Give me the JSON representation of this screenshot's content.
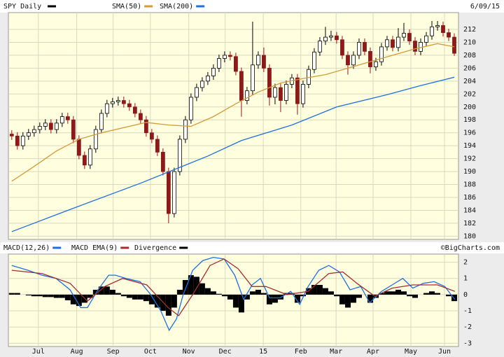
{
  "chart_data": [
    {
      "type": "candlestick",
      "title": "SPY Daily",
      "date_label": "6/09/15",
      "color": "#000000",
      "down_color": "#8b1a1a",
      "open": [
        195.8,
        195.5,
        194,
        195.5,
        196,
        196.5,
        197,
        197.5,
        196.5,
        197.5,
        198.5,
        198,
        195,
        192.5,
        191,
        193.5,
        196.5,
        199,
        200.5,
        200.8,
        201,
        200.5,
        200,
        199,
        198,
        196,
        195,
        193,
        190,
        183.5,
        190,
        195,
        198,
        201.5,
        203,
        204,
        204.8,
        206,
        207.5,
        208,
        207.8,
        205.5,
        201,
        202.5,
        206.5,
        208,
        206,
        201.5,
        203,
        201,
        203.5,
        204.5,
        200.5,
        203.5,
        205.8,
        208.5,
        210.2,
        210.8,
        211,
        210.4,
        208,
        206.5,
        208,
        210,
        208.6,
        206.2,
        207,
        209.3,
        210.4,
        209.2,
        210.8,
        211.4,
        210.2,
        208.6,
        210,
        211,
        212.4,
        212.6,
        211.5,
        210.8
      ],
      "high": [
        196.4,
        196.1,
        196.1,
        196.6,
        197.1,
        197.6,
        198.1,
        198.1,
        198.1,
        199.1,
        199.1,
        198.6,
        195.6,
        193.1,
        194.1,
        197.1,
        199.6,
        201.1,
        201.4,
        201.6,
        201.6,
        201.1,
        200.6,
        199.6,
        198.6,
        196.6,
        195.6,
        193.6,
        190.6,
        190.6,
        195.6,
        198.6,
        202.1,
        203.6,
        204.6,
        205.4,
        206.6,
        208.1,
        208.6,
        208.6,
        208.4,
        206.1,
        203.1,
        213.2,
        208.6,
        209.2,
        206.6,
        203.6,
        203.6,
        204.1,
        205.1,
        205.1,
        204.1,
        206.4,
        209.1,
        210.8,
        212.4,
        211.8,
        211.6,
        211,
        208.6,
        208.6,
        210.6,
        210.6,
        209.2,
        207.6,
        209.9,
        211,
        211,
        212.2,
        213,
        212,
        210.8,
        210.6,
        211.6,
        213.3,
        213.3,
        213.2,
        212.1,
        211.4
      ],
      "low": [
        194.9,
        193.4,
        193.4,
        194.9,
        195.4,
        195.9,
        196.4,
        195.9,
        195.9,
        196.9,
        197.4,
        194.4,
        191.9,
        190.4,
        190.4,
        192.9,
        195.9,
        198.4,
        199.9,
        200.2,
        199.9,
        199.4,
        198.4,
        197.4,
        195.4,
        194.4,
        192.4,
        189.4,
        182,
        182.9,
        189.4,
        194.4,
        197.4,
        200.9,
        202.4,
        203.4,
        204.2,
        205.4,
        206.9,
        207.2,
        204.9,
        198.5,
        200.4,
        201.9,
        205.9,
        205.4,
        200.2,
        200.4,
        199.2,
        200.4,
        202.9,
        198.8,
        199.9,
        202.9,
        205.2,
        207.9,
        209.6,
        210.2,
        209.8,
        207.4,
        205,
        205.9,
        207.4,
        208,
        205.2,
        205.6,
        206.4,
        208.7,
        208.6,
        208.6,
        210.2,
        209.6,
        208,
        208,
        209.4,
        210.4,
        211.8,
        210.9,
        210.2,
        207.9
      ],
      "close": [
        195.5,
        194,
        195.5,
        196,
        196.5,
        197,
        197.5,
        196.5,
        197.5,
        198.5,
        198,
        195,
        192.5,
        191,
        193.5,
        196.5,
        199,
        200.5,
        200.8,
        201,
        200.5,
        200,
        199,
        198,
        196,
        195,
        193,
        190,
        183.5,
        190,
        195,
        198,
        201.5,
        203,
        204,
        204.8,
        206,
        207.5,
        208,
        207.8,
        205.5,
        201,
        202.5,
        206.5,
        208,
        206,
        201.5,
        203,
        201,
        203.5,
        204.5,
        200.5,
        203.5,
        205.8,
        208.5,
        210.2,
        210.8,
        211,
        210.4,
        208,
        206.5,
        208,
        210,
        208.6,
        206.2,
        207,
        209.3,
        210.4,
        209.2,
        210.8,
        211.4,
        210.2,
        208.6,
        210,
        211,
        212.4,
        212.6,
        211.5,
        210.8,
        208.3
      ],
      "series": [
        {
          "name": "SMA(50)",
          "color": "#d49a3a",
          "x": [
            0,
            4,
            8,
            12,
            16,
            20,
            24,
            28,
            32,
            36,
            40,
            44,
            48,
            52,
            56,
            60,
            64,
            68,
            72,
            76,
            79
          ],
          "values": [
            188.5,
            190.8,
            193.2,
            195,
            196,
            196.8,
            197.6,
            197.2,
            197,
            198.5,
            200.5,
            202.3,
            203.7,
            204.4,
            205,
            206,
            207,
            208,
            209,
            209.8,
            209.3
          ]
        },
        {
          "name": "SMA(200)",
          "color": "#1f6fe0",
          "x": [
            0,
            10,
            23,
            35,
            41,
            50,
            58,
            67,
            73,
            79
          ],
          "values": [
            180.7,
            184,
            188.2,
            192.4,
            194.8,
            197.2,
            200,
            201.9,
            203.3,
            204.6
          ]
        }
      ],
      "ylim": [
        179.5,
        214.6
      ],
      "yticks": [
        180,
        182,
        184,
        186,
        188,
        190,
        192,
        194,
        196,
        198,
        200,
        202,
        204,
        206,
        208,
        210,
        212
      ],
      "grid": true
    },
    {
      "type": "macd",
      "source": "©BigCharts.com",
      "series": [
        {
          "name": "MACD(12,26)",
          "color": "#1f6fe0",
          "x": [
            0,
            2.9,
            5.4,
            7.9,
            10.4,
            12.3,
            13.5,
            15.4,
            17.3,
            18.5,
            20.4,
            22.9,
            24.8,
            26.6,
            28.1,
            29.4,
            30.6,
            32.3,
            34.1,
            36,
            37.9,
            39.8,
            41.4,
            42.9,
            44.4,
            46,
            47.9,
            49.8,
            51.4,
            52.9,
            54.8,
            56.6,
            58.5,
            60.4,
            62.3,
            63.9,
            66,
            67.9,
            69.8,
            71.6,
            73.5,
            75.4,
            77.3,
            79.1
          ],
          "values": [
            1.8,
            1.5,
            1.2,
            1,
            0.3,
            -0.8,
            -0.8,
            0.3,
            1.2,
            1.2,
            1,
            0.8,
            0,
            -1,
            -2.2,
            -1.5,
            0,
            1.5,
            2.1,
            2.3,
            2.2,
            1.2,
            -0.3,
            0.6,
            1,
            -0.2,
            -0.2,
            0.2,
            -0.6,
            0.5,
            1.5,
            1.8,
            1.4,
            0.3,
            0.5,
            -0.5,
            0.2,
            0.6,
            1,
            0.4,
            0.7,
            0.8,
            0.5,
            -0.3
          ]
        },
        {
          "name": "MACD EMA(9)",
          "color": "#a03030",
          "x": [
            0,
            5.4,
            10.4,
            13.5,
            16.6,
            19.8,
            24.1,
            27.9,
            29.8,
            32.3,
            35.4,
            37.9,
            40.4,
            42.9,
            45.4,
            49.1,
            52.9,
            56.6,
            59.1,
            61.6,
            64.8,
            67.9,
            71.6,
            76,
            79.1
          ],
          "values": [
            1.5,
            1.3,
            0.7,
            -0.4,
            0.5,
            1,
            0.6,
            -0.8,
            -1.3,
            0,
            1.8,
            2.2,
            1.6,
            0.5,
            0.5,
            0,
            0.2,
            1.3,
            1.4,
            0.7,
            -0.1,
            0.4,
            0.6,
            0.6,
            0.2
          ]
        },
        {
          "name": "Divergence",
          "color": "#000000",
          "values": [
            0.1,
            0.1,
            0,
            -0.05,
            -0.1,
            -0.1,
            -0.15,
            -0.15,
            -0.2,
            -0.2,
            -0.35,
            -0.6,
            -0.7,
            -0.5,
            -0.2,
            0.3,
            0.5,
            0.5,
            0.3,
            0.1,
            -0.1,
            -0.2,
            -0.3,
            -0.3,
            -0.4,
            -0.6,
            -0.8,
            -1,
            -1.3,
            -0.8,
            0.3,
            0.9,
            1.2,
            1.1,
            0.7,
            0.4,
            0.2,
            0.05,
            -0.1,
            -0.3,
            -0.8,
            -1.1,
            -0.3,
            0.2,
            0.3,
            0.1,
            -0.6,
            -0.5,
            -0.3,
            0.1,
            0.1,
            -0.5,
            -0.1,
            0.4,
            0.6,
            0.6,
            0.4,
            0.2,
            -0.1,
            -0.6,
            -0.8,
            -0.5,
            -0.2,
            0,
            -0.5,
            -0.2,
            0.1,
            0.2,
            0.2,
            0.3,
            0.2,
            -0.1,
            -0.2,
            0,
            0.1,
            0.2,
            0.1,
            0,
            -0.1,
            -0.4
          ]
        }
      ],
      "xlim": [
        -0.6,
        79.75
      ],
      "xticks": [
        {
          "value": 4.75,
          "label": "Jul"
        },
        {
          "value": 11.6,
          "label": "Aug"
        },
        {
          "value": 18.1,
          "label": "Sep"
        },
        {
          "value": 24.75,
          "label": "Oct"
        },
        {
          "value": 31.6,
          "label": "Nov"
        },
        {
          "value": 38.1,
          "label": "Dec"
        },
        {
          "value": 44.9,
          "label": "15"
        },
        {
          "value": 51.6,
          "label": "Feb"
        },
        {
          "value": 57.9,
          "label": "Mar"
        },
        {
          "value": 64.5,
          "label": "Apr"
        },
        {
          "value": 71.25,
          "label": "May"
        },
        {
          "value": 77.25,
          "label": "Jun"
        }
      ],
      "ylim": [
        -3.2,
        2.5
      ],
      "yticks": [
        -3,
        -2,
        -1,
        0,
        1,
        2
      ],
      "grid": true
    }
  ]
}
